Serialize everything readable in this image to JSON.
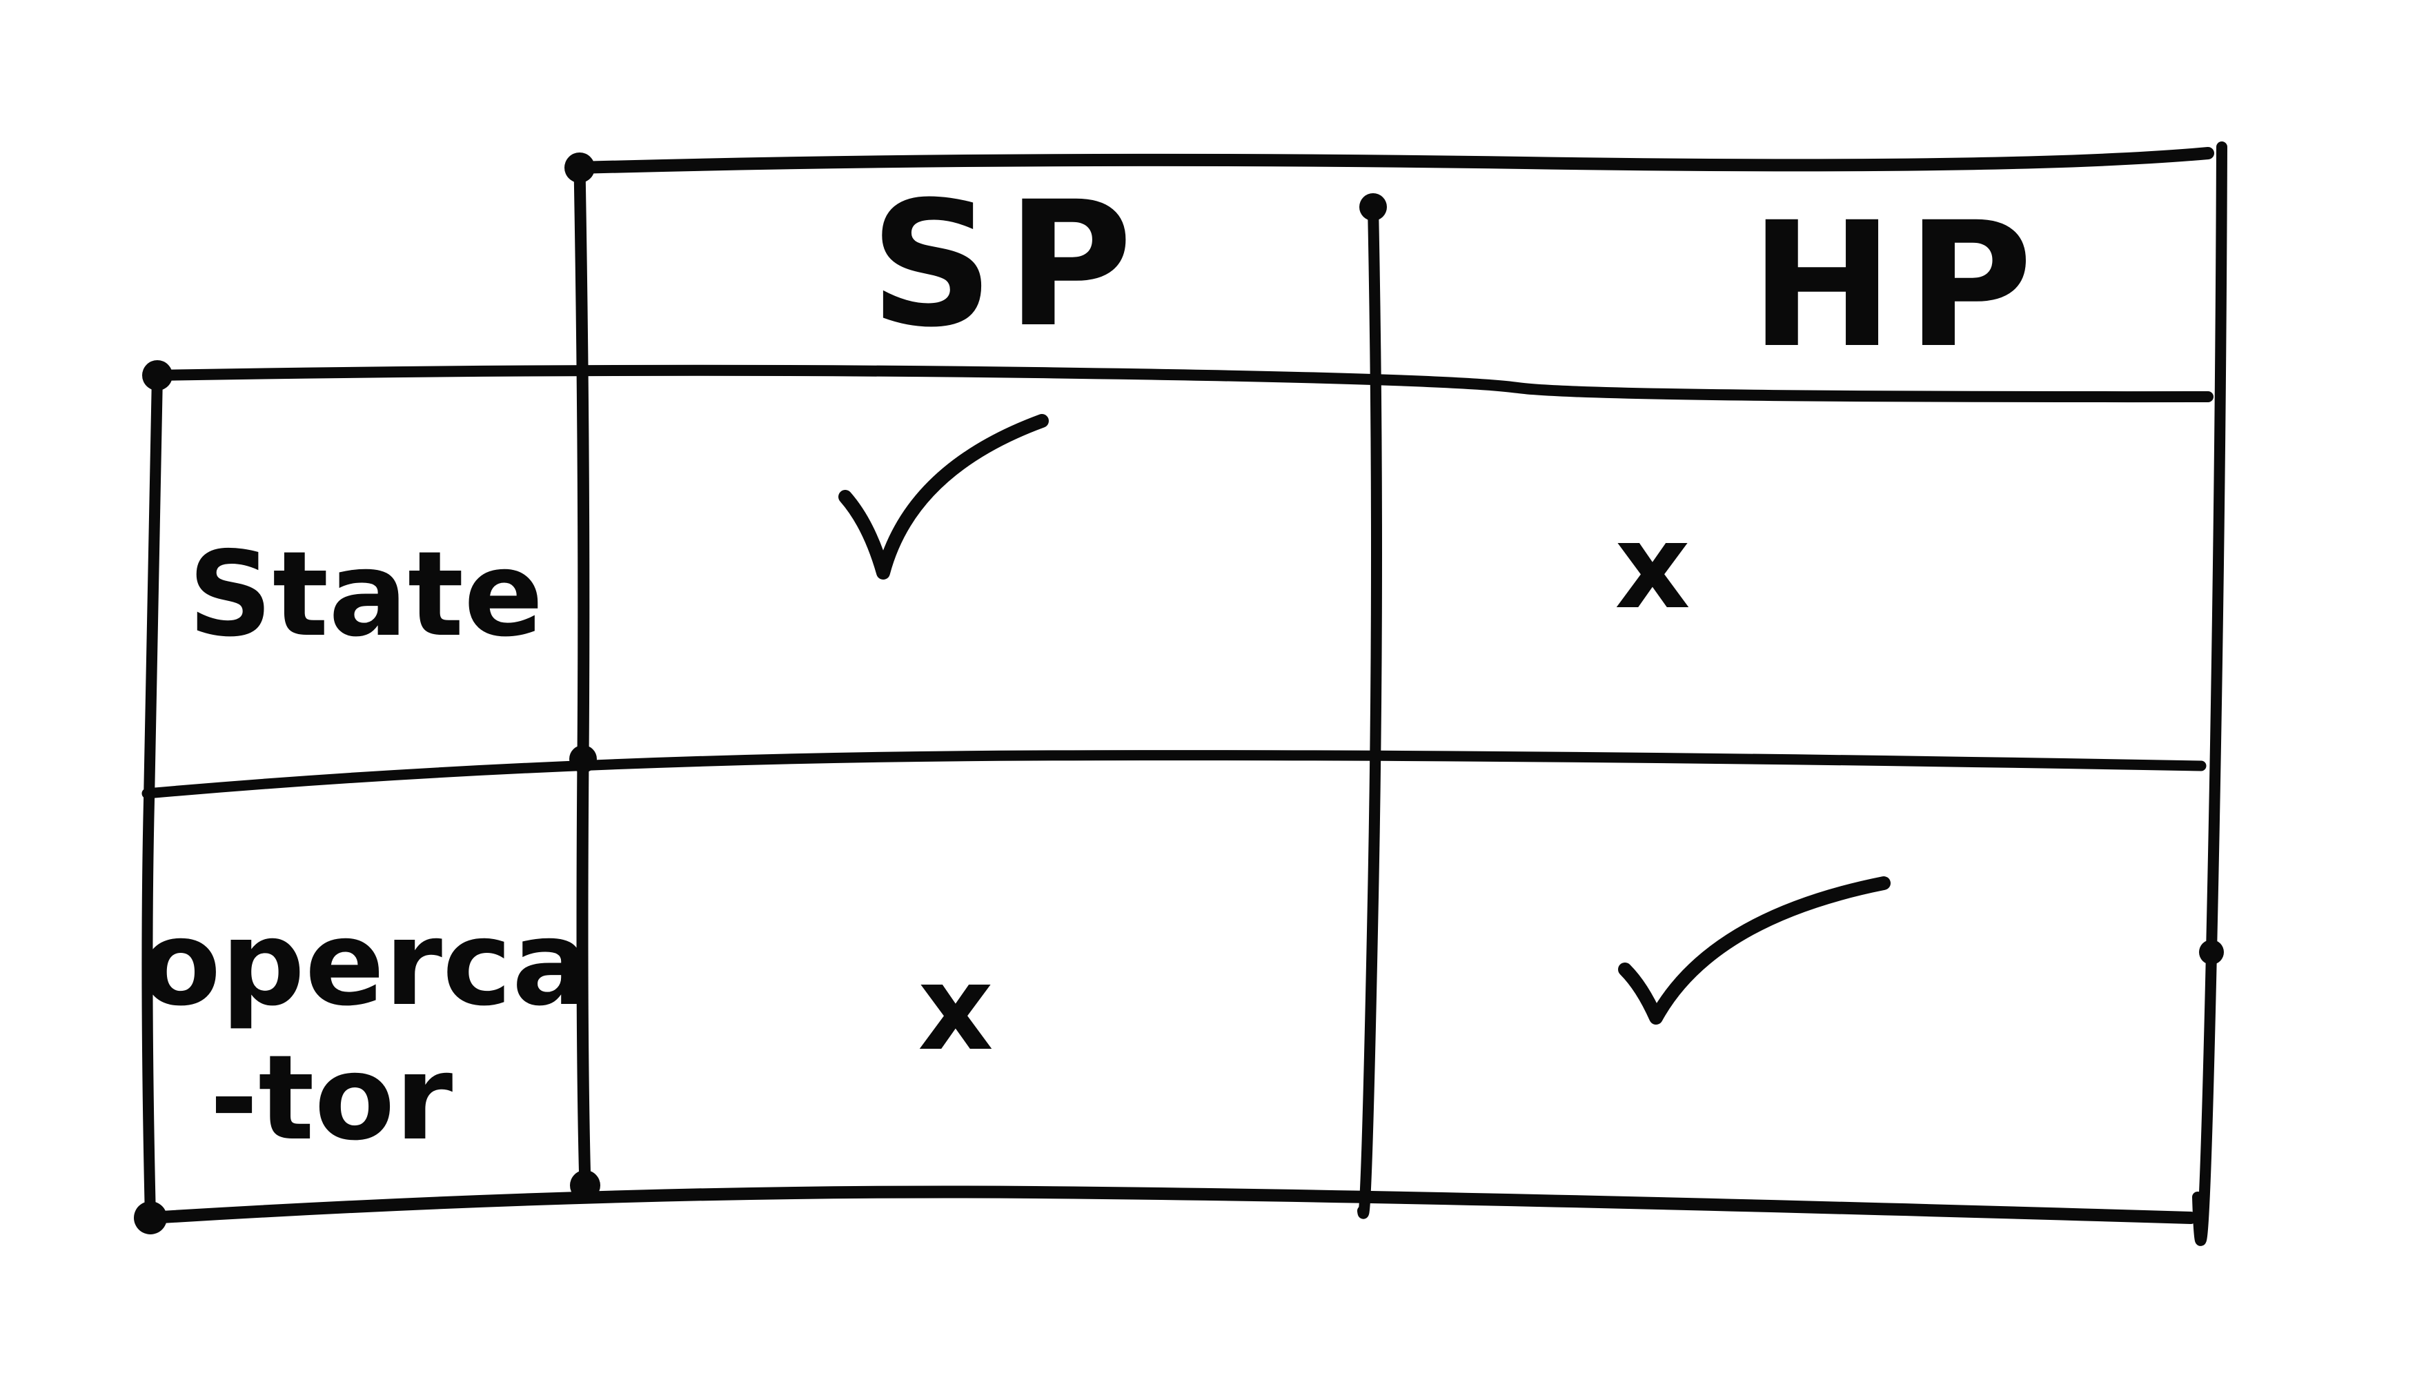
{
  "table": {
    "columns": [
      "SP",
      "HP"
    ],
    "rows": [
      {
        "label_lines": [
          "State"
        ],
        "cells": [
          "✓",
          "x"
        ]
      },
      {
        "label_lines": [
          "operca",
          "-tor"
        ],
        "cells": [
          "x",
          "✓"
        ]
      }
    ]
  }
}
